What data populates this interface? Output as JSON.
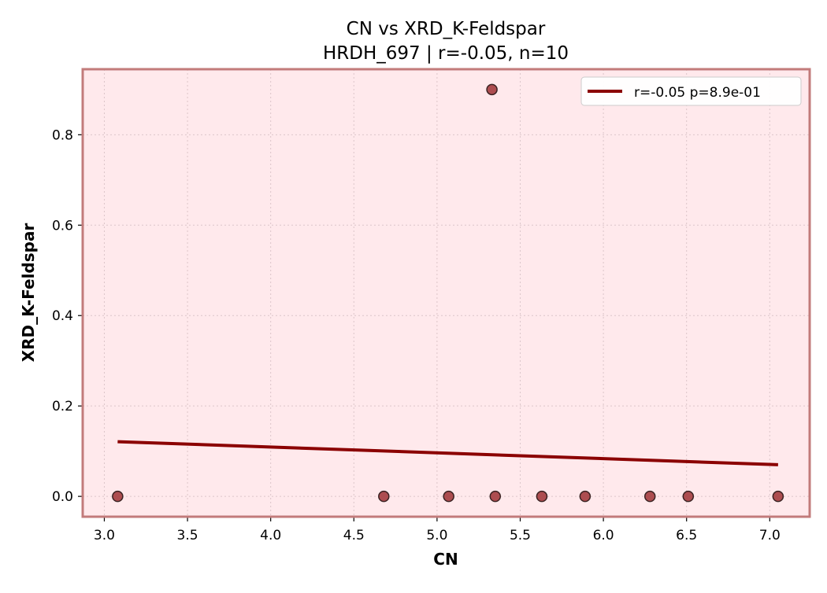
{
  "chart_data": {
    "type": "scatter",
    "title": "CN vs XRD_K-Feldspar",
    "subtitle": "HRDH_697 | r=-0.05, n=10",
    "xlabel": "CN",
    "ylabel": "XRD_K-Feldspar",
    "xlim": [
      2.87,
      7.24
    ],
    "ylim": [
      -0.045,
      0.945
    ],
    "xticks": [
      3.0,
      3.5,
      4.0,
      4.5,
      5.0,
      5.5,
      6.0,
      6.5,
      7.0
    ],
    "xtick_labels": [
      "3.0",
      "3.5",
      "4.0",
      "4.5",
      "5.0",
      "5.5",
      "6.0",
      "6.5",
      "7.0"
    ],
    "yticks": [
      0.0,
      0.2,
      0.4,
      0.6,
      0.8
    ],
    "ytick_labels": [
      "0.0",
      "0.2",
      "0.4",
      "0.6",
      "0.8"
    ],
    "grid": true,
    "legend_position": "top-right",
    "points": {
      "x": [
        3.08,
        4.68,
        5.07,
        5.33,
        5.35,
        5.63,
        5.89,
        6.28,
        6.51,
        7.05
      ],
      "y": [
        0.0,
        0.0,
        0.0,
        0.9,
        0.0,
        0.0,
        0.0,
        0.0,
        0.0,
        0.0
      ]
    },
    "fit_line": {
      "name": "r=-0.05  p=8.9e-01",
      "x": [
        3.08,
        7.05
      ],
      "y": [
        0.121,
        0.07
      ]
    },
    "colors": {
      "plot_background": "#ffe9ec",
      "plot_border": "#c27b7b",
      "point_fill": "#a94448",
      "point_edge": "#3a2222",
      "fit_line": "#8b0000",
      "grid": "#dcc5c9"
    }
  }
}
